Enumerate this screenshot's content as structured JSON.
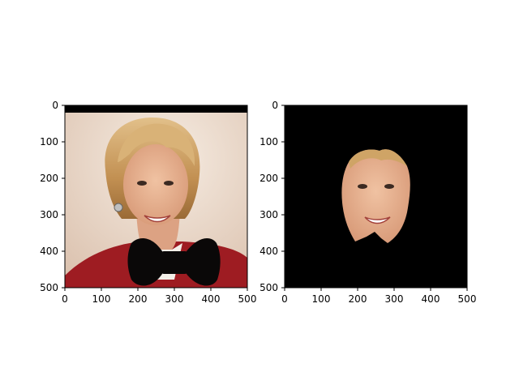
{
  "figure": {
    "panels": [
      {
        "name": "left",
        "description_shown": "photo with black bow tie overlay",
        "x_ticks": [
          "0",
          "100",
          "200",
          "300",
          "400",
          "500"
        ],
        "y_ticks": [
          "0",
          "100",
          "200",
          "300",
          "400",
          "500"
        ],
        "xlim": [
          0,
          500
        ],
        "ylim": [
          500,
          0
        ]
      },
      {
        "name": "right",
        "description_shown": "masked face on black background",
        "x_ticks": [
          "0",
          "100",
          "200",
          "300",
          "400",
          "500"
        ],
        "y_ticks": [
          "0",
          "100",
          "200",
          "300",
          "400",
          "500"
        ],
        "xlim": [
          0,
          500
        ],
        "ylim": [
          500,
          0
        ]
      }
    ],
    "colors": {
      "background": "#ffffff",
      "mask": "#000000",
      "jacket": "#9e1c22",
      "skin": "#e6ae8c",
      "hair": "#c79a5a",
      "photo_bg": "#efe1d4"
    }
  }
}
